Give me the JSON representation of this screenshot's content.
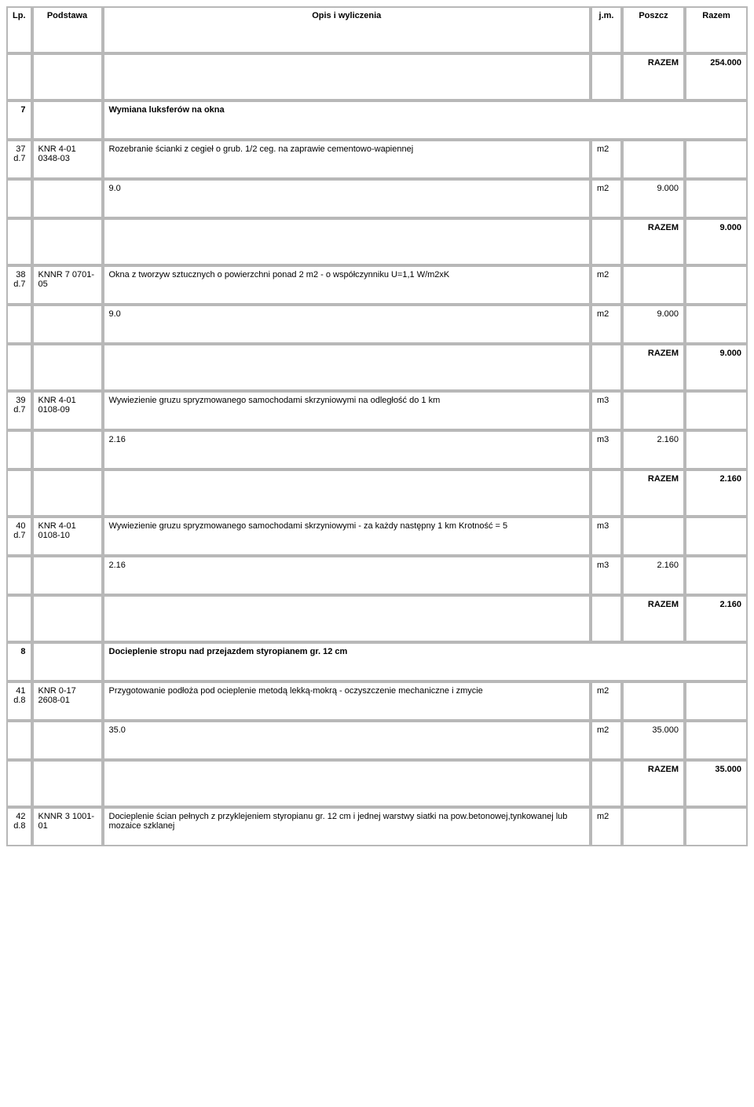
{
  "header": {
    "lp": "Lp.",
    "podstawa": "Podstawa",
    "opis": "Opis i wyliczenia",
    "jm": "j.m.",
    "poszcz": "Poszcz",
    "razem": "Razem"
  },
  "razem_label": "RAZEM",
  "top_razem": "254.000",
  "section7": {
    "num": "7",
    "title": "Wymiana luksferów na okna"
  },
  "row37": {
    "lp": "37\nd.7",
    "pod": "KNR 4-01\n0348-03",
    "opis": "Rozebranie ścianki z cegieł o grub. 1/2 ceg. na zaprawie cementowo-wapiennej",
    "jm": "m2",
    "calc": "9.0",
    "calc_jm": "m2",
    "calc_val": "9.000",
    "razem": "9.000"
  },
  "row38": {
    "lp": "38\nd.7",
    "pod": "KNNR 7 0701-05",
    "opis": "Okna z tworzyw sztucznych o powierzchni ponad 2 m2 - o współczynniku U=1,1 W/m2xK",
    "jm": "m2",
    "calc": "9.0",
    "calc_jm": "m2",
    "calc_val": "9.000",
    "razem": "9.000"
  },
  "row39": {
    "lp": "39\nd.7",
    "pod": "KNR 4-01\n0108-09",
    "opis": "Wywiezienie gruzu spryzmowanego samochodami skrzyniowymi na odległość do 1 km",
    "jm": "m3",
    "calc": "2.16",
    "calc_jm": "m3",
    "calc_val": "2.160",
    "razem": "2.160"
  },
  "row40": {
    "lp": "40\nd.7",
    "pod": "KNR 4-01\n0108-10",
    "opis": "Wywiezienie gruzu spryzmowanego samochodami skrzyniowymi - za każdy następny 1 km Krotność = 5",
    "jm": "m3",
    "calc": "2.16",
    "calc_jm": "m3",
    "calc_val": "2.160",
    "razem": "2.160"
  },
  "section8": {
    "num": "8",
    "title": "Docieplenie stropu nad przejazdem styropianem gr. 12 cm"
  },
  "row41": {
    "lp": "41\nd.8",
    "pod": "KNR 0-17\n2608-01",
    "opis": "Przygotowanie podłoża pod ocieplenie metodą lekką-mokrą - oczyszczenie mechaniczne i zmycie",
    "jm": "m2",
    "calc": "35.0",
    "calc_jm": "m2",
    "calc_val": "35.000",
    "razem": "35.000"
  },
  "row42": {
    "lp": "42\nd.8",
    "pod": "KNNR 3 1001-01",
    "opis": "Docieplenie ścian pełnych z przyklejeniem styropianu gr. 12 cm i jednej warstwy siatki na pow.betonowej,tynkowanej lub mozaice szklanej",
    "jm": "m2"
  },
  "colors": {
    "border": "#b8b8b8",
    "background": "#ffffff",
    "text": "#000000"
  },
  "fontsize": 11
}
